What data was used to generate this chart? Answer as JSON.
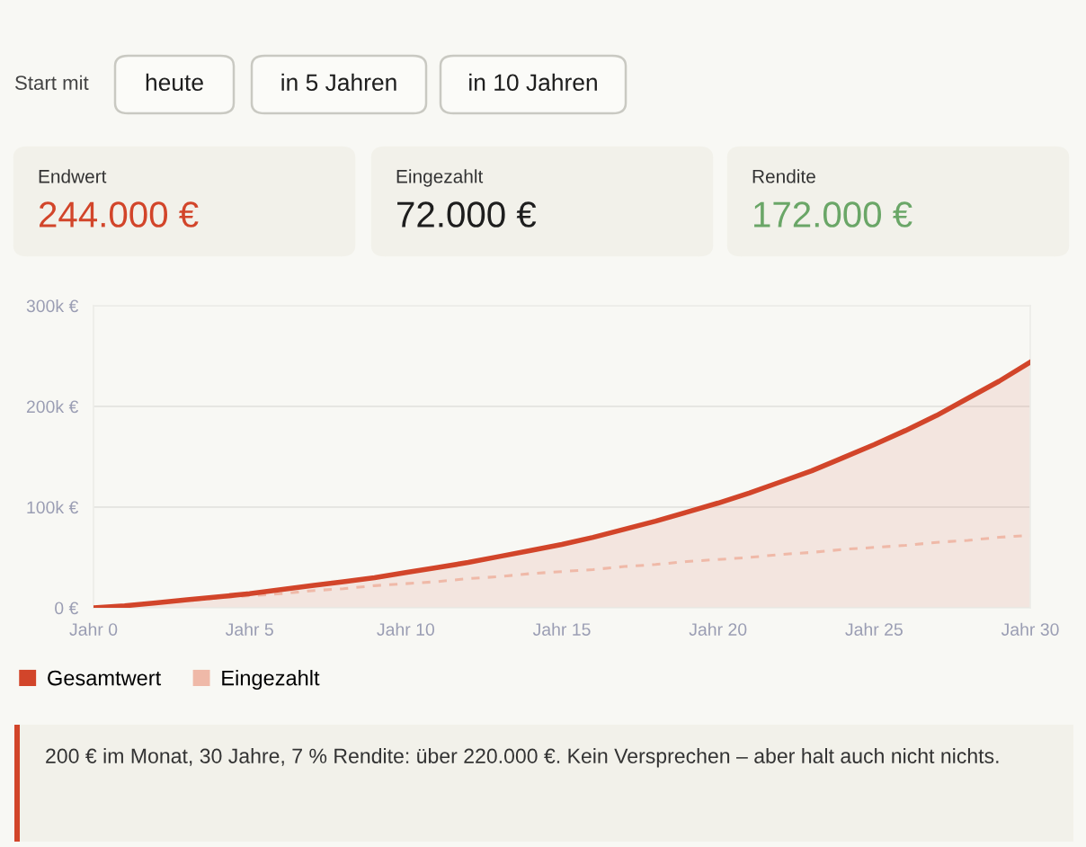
{
  "chart_data": [
    {
      "type": "other",
      "annotations": [
        "Start mit",
        "heute",
        "in 5 Jahren",
        "in 10 Jahren",
        "Endwert",
        "244.000 €",
        "Eingezahlt",
        "72.000 €",
        "Rendite",
        "172.000 €"
      ],
      "colors": [
        "#d2452a",
        "#1e1e1e",
        "#6aa667"
      ]
    },
    {
      "type": "line",
      "categories": [
        "Jahr 0",
        null,
        null,
        null,
        null,
        "Jahr 5",
        null,
        null,
        null,
        null,
        "Jahr 10",
        null,
        null,
        null,
        null,
        "Jahr 15",
        null,
        null,
        null,
        null,
        "Jahr 20",
        null,
        null,
        null,
        null,
        "Jahr 25",
        null,
        null,
        null,
        null,
        "Jahr 30"
      ],
      "series": [
        {
          "name": "Gesamtwert",
          "type": "area",
          "color": "#d2452a",
          "values": [
            0,
            2000,
            5000,
            8000,
            11000,
            14000,
            18000,
            22000,
            26000,
            30000,
            35000,
            40000,
            45000,
            51000,
            57000,
            63000,
            70000,
            78000,
            86000,
            95000,
            104000,
            114000,
            125000,
            136000,
            149000,
            162000,
            176000,
            191000,
            208000,
            225000,
            244000
          ]
        },
        {
          "name": "Eingezahlt",
          "type": "line",
          "color": "#efb9a8",
          "line_style": "dashed",
          "values": [
            0,
            2000,
            5000,
            7000,
            10000,
            12000,
            14000,
            17000,
            19000,
            22000,
            24000,
            26000,
            29000,
            31000,
            34000,
            36000,
            38000,
            41000,
            43000,
            46000,
            48000,
            50000,
            53000,
            55000,
            58000,
            60000,
            62000,
            65000,
            67000,
            70000,
            72000
          ]
        }
      ],
      "ylim": [
        0,
        300000
      ],
      "yticks": [
        {
          "value": 0,
          "label": "0 €"
        },
        {
          "value": 100000,
          "label": "100k €"
        },
        {
          "value": 200000,
          "label": "200k €"
        },
        {
          "value": 300000,
          "label": "300k €"
        }
      ],
      "grid": "y",
      "legend": "bottom",
      "marker": "none",
      "annotations": [
        "200 € im Monat, 30 Jahre, 7 % Rendite: über 220.000 €. Kein Versprechen – aber halt auch nicht nichts."
      ]
    }
  ]
}
